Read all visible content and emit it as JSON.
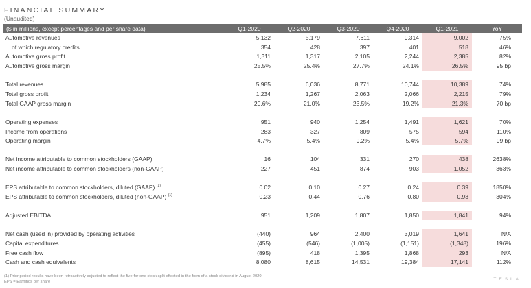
{
  "title": "FINANCIAL SUMMARY",
  "subtitle": "(Unaudited)",
  "header": [
    "($ in millions, except percentages and per share data)",
    "Q1-2020",
    "Q2-2020",
    "Q3-2020",
    "Q4-2020",
    "Q1-2021",
    "YoY"
  ],
  "sections": [
    [
      {
        "label": "Automotive revenues",
        "values": [
          "5,132",
          "5,179",
          "7,611",
          "9,314",
          "9,002"
        ],
        "yoy": "75%"
      },
      {
        "label": "of which regulatory credits",
        "indent": true,
        "values": [
          "354",
          "428",
          "397",
          "401",
          "518"
        ],
        "yoy": "46%"
      },
      {
        "label": "Automotive gross profit",
        "values": [
          "1,311",
          "1,317",
          "2,105",
          "2,244",
          "2,385"
        ],
        "yoy": "82%"
      },
      {
        "label": "Automotive gross margin",
        "values": [
          "25.5%",
          "25.4%",
          "27.7%",
          "24.1%",
          "26.5%"
        ],
        "yoy": "95 bp"
      }
    ],
    [
      {
        "label": "Total revenues",
        "values": [
          "5,985",
          "6,036",
          "8,771",
          "10,744",
          "10,389"
        ],
        "yoy": "74%"
      },
      {
        "label": "Total gross profit",
        "values": [
          "1,234",
          "1,267",
          "2,063",
          "2,066",
          "2,215"
        ],
        "yoy": "79%"
      },
      {
        "label": "Total GAAP gross margin",
        "values": [
          "20.6%",
          "21.0%",
          "23.5%",
          "19.2%",
          "21.3%"
        ],
        "yoy": "70 bp"
      }
    ],
    [
      {
        "label": "Operating expenses",
        "values": [
          "951",
          "940",
          "1,254",
          "1,491",
          "1,621"
        ],
        "yoy": "70%"
      },
      {
        "label": "Income from operations",
        "values": [
          "283",
          "327",
          "809",
          "575",
          "594"
        ],
        "yoy": "110%"
      },
      {
        "label": "Operating margin",
        "values": [
          "4.7%",
          "5.4%",
          "9.2%",
          "5.4%",
          "5.7%"
        ],
        "yoy": "99 bp"
      }
    ],
    [
      {
        "label": "Net income attributable to common stockholders (GAAP)",
        "values": [
          "16",
          "104",
          "331",
          "270",
          "438"
        ],
        "yoy": "2638%"
      },
      {
        "label": "Net income attributable to common stockholders (non-GAAP)",
        "values": [
          "227",
          "451",
          "874",
          "903",
          "1,052"
        ],
        "yoy": "363%"
      }
    ],
    [
      {
        "label": "EPS attributable to common stockholders, diluted (GAAP)",
        "sup": "(1)",
        "values": [
          "0.02",
          "0.10",
          "0.27",
          "0.24",
          "0.39"
        ],
        "yoy": "1850%"
      },
      {
        "label": "EPS attributable to common stockholders, diluted (non-GAAP)",
        "sup": "(1)",
        "values": [
          "0.23",
          "0.44",
          "0.76",
          "0.80",
          "0.93"
        ],
        "yoy": "304%"
      }
    ],
    [
      {
        "label": "Adjusted EBITDA",
        "values": [
          "951",
          "1,209",
          "1,807",
          "1,850",
          "1,841"
        ],
        "yoy": "94%"
      }
    ],
    [
      {
        "label": "Net cash (used in) provided by operating activities",
        "values": [
          "(440)",
          "964",
          "2,400",
          "3,019",
          "1,641"
        ],
        "yoy": "N/A"
      },
      {
        "label": "Capital expenditures",
        "values": [
          "(455)",
          "(546)",
          "(1,005)",
          "(1,151)",
          "(1,348)"
        ],
        "yoy": "196%"
      },
      {
        "label": "Free cash flow",
        "values": [
          "(895)",
          "418",
          "1,395",
          "1,868",
          "293"
        ],
        "yoy": "N/A"
      },
      {
        "label": "Cash and cash equivalents",
        "values": [
          "8,080",
          "8,615",
          "14,531",
          "19,384",
          "17,141"
        ],
        "yoy": "112%"
      }
    ]
  ],
  "footnotes": [
    "(1) Prior period results have been retroactively adjusted to reflect the five-for-one stock split effected in the form of a stock dividend in August 2020.",
    "EPS = Earnings per share"
  ],
  "brand": "TESLA",
  "colors": {
    "header_bg": "#6d6d6d",
    "highlight": "#f6dcdc",
    "text": "#3a3a3a"
  }
}
